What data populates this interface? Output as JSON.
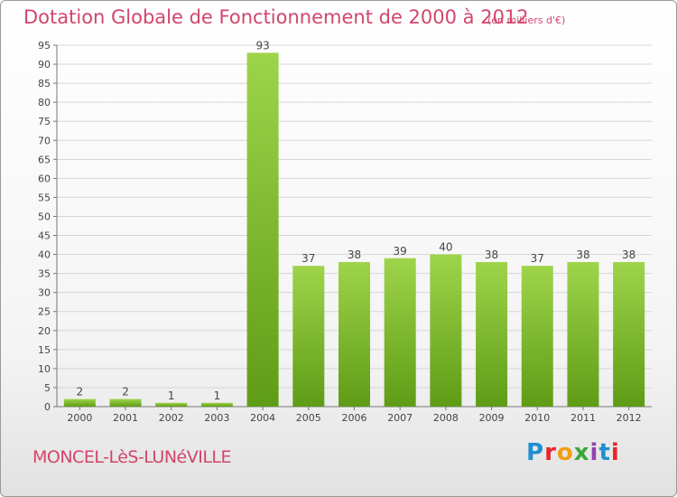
{
  "header": {
    "title": "Dotation Globale de Fonctionnement de 2000 à 2012",
    "unit": "(en milliers d'€)"
  },
  "footer": {
    "commune": "MONCEL-LèS-LUNéVILLE",
    "brand": "Proxiti",
    "brand_colors": [
      "#1f8fd2",
      "#e8252d",
      "#f39c12",
      "#3aa83a",
      "#8e44ad",
      "#1f8fd2",
      "#e8252d"
    ]
  },
  "colors": {
    "bar_light": "#9ed44a",
    "bar_dark": "#5f9c16",
    "title": "#d2456d"
  },
  "chart_data": {
    "type": "bar",
    "categories": [
      "2000",
      "2001",
      "2002",
      "2003",
      "2004",
      "2005",
      "2006",
      "2007",
      "2008",
      "2009",
      "2010",
      "2011",
      "2012"
    ],
    "values": [
      2,
      2,
      1,
      1,
      93,
      37,
      38,
      39,
      40,
      38,
      37,
      38,
      38
    ],
    "title": "Dotation Globale de Fonctionnement de 2000 à 2012",
    "ylim": [
      0,
      95
    ],
    "yticks": [
      0,
      5,
      10,
      15,
      20,
      25,
      30,
      35,
      40,
      45,
      50,
      55,
      60,
      65,
      70,
      75,
      80,
      85,
      90,
      95
    ],
    "grid": true
  }
}
